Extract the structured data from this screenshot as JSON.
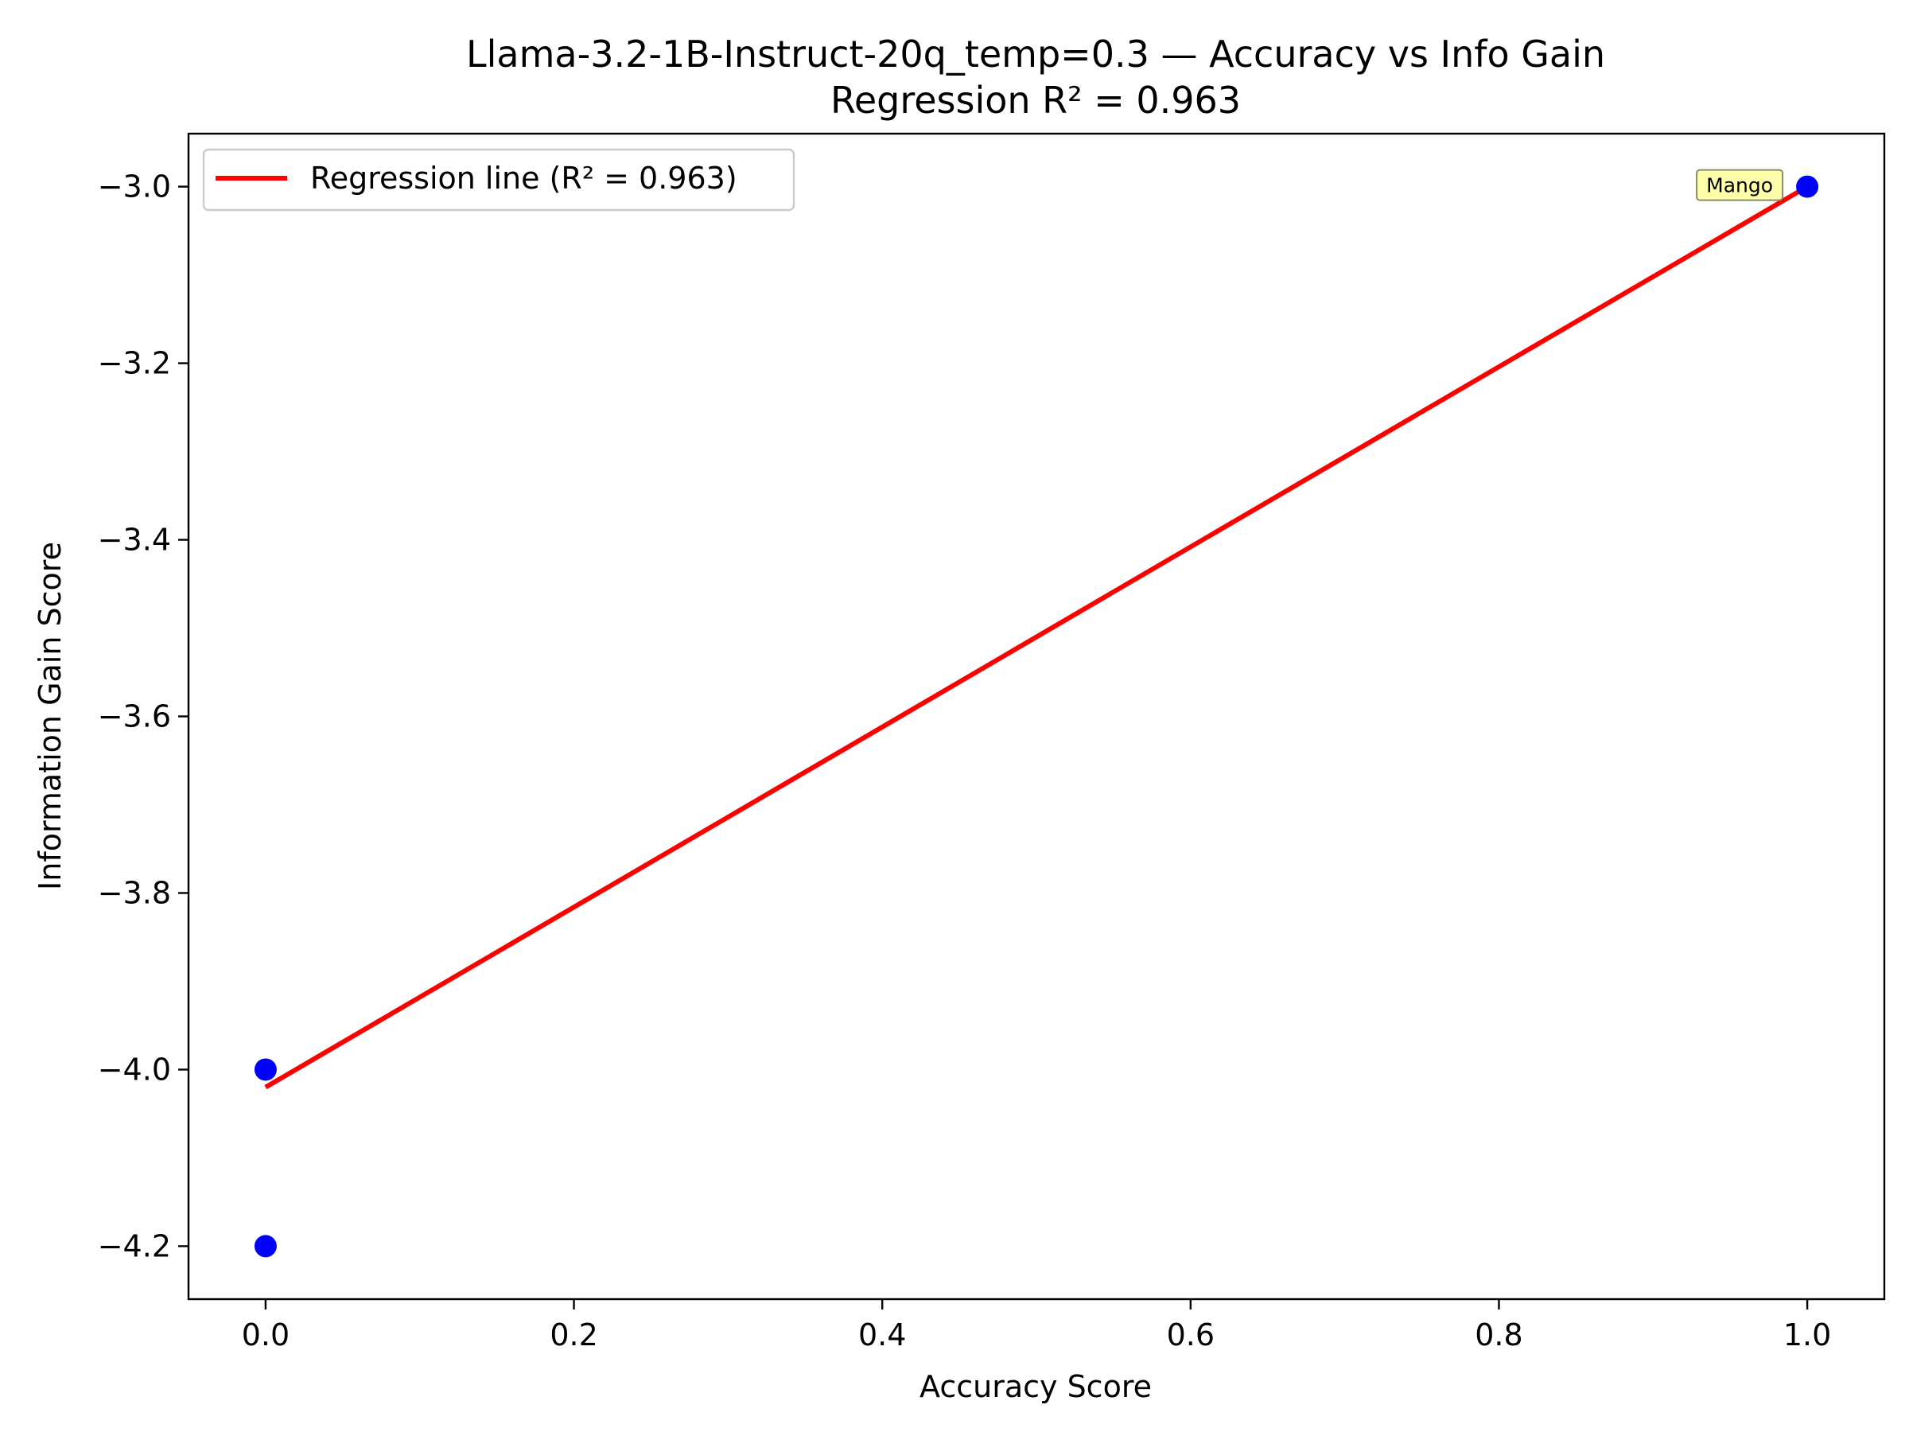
{
  "chart_data": {
    "type": "scatter",
    "title": "Llama-3.2-1B-Instruct-20q_temp=0.3 — Accuracy vs Info Gain",
    "subtitle": "Regression R² = 0.963",
    "xlabel": "Accuracy Score",
    "ylabel": "Information Gain Score",
    "xlim": [
      -0.05,
      1.05
    ],
    "ylim": [
      -4.26,
      -2.94
    ],
    "xticks": [
      0.0,
      0.2,
      0.4,
      0.6,
      0.8,
      1.0
    ],
    "xtick_labels": [
      "0.0",
      "0.2",
      "0.4",
      "0.6",
      "0.8",
      "1.0"
    ],
    "yticks": [
      -4.2,
      -4.0,
      -3.8,
      -3.6,
      -3.4,
      -3.2,
      -3.0
    ],
    "ytick_labels": [
      "−4.2",
      "−4.0",
      "−3.8",
      "−3.6",
      "−3.4",
      "−3.2",
      "−3.0"
    ],
    "points": [
      {
        "x": 0.0,
        "y": -4.0
      },
      {
        "x": 0.0,
        "y": -4.2
      },
      {
        "x": 1.0,
        "y": -3.0
      }
    ],
    "point_color": "#0000ff",
    "regression": {
      "name": "Regression line (R² = 0.963)",
      "x": [
        0.0,
        1.0
      ],
      "y": [
        -4.02,
        -3.0
      ],
      "color": "#ff0000"
    },
    "annotations": [
      {
        "text": "Mango",
        "x": 1.0,
        "y": -3.0,
        "background": "#ffffaa"
      }
    ],
    "legend_position": "top-left",
    "grid": false
  }
}
